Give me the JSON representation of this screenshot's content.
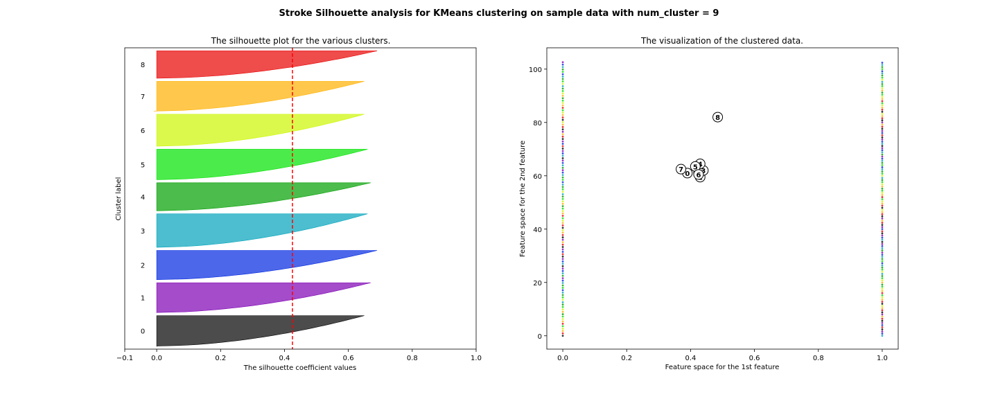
{
  "figure": {
    "suptitle": "Stroke Silhouette analysis for KMeans clustering on sample data with num_cluster = 9"
  },
  "chart_data": [
    {
      "type": "area",
      "title": "The silhouette plot for the various clusters.",
      "xlabel": "The silhouette coefficient values",
      "ylabel": "Cluster label",
      "xlim": [
        -0.1,
        1.0
      ],
      "xticks": [
        -0.1,
        0.0,
        0.2,
        0.4,
        0.6,
        0.8,
        1.0
      ],
      "xtick_labels": [
        "−0.1",
        "0.0",
        "0.2",
        "0.4",
        "0.6",
        "0.8",
        "1.0"
      ],
      "grid": false,
      "average_silhouette_score": 0.425,
      "average_line_color": "#ff0000",
      "clusters": [
        {
          "label": "0",
          "color": "#000000",
          "n": 100,
          "max": 0.65,
          "min": 0.0
        },
        {
          "label": "1",
          "color": "#7e00b4",
          "n": 98,
          "max": 0.67,
          "min": 0.0
        },
        {
          "label": "2",
          "color": "#0026e0",
          "n": 96,
          "max": 0.69,
          "min": 0.0
        },
        {
          "label": "3",
          "color": "#00a3bb",
          "n": 110,
          "max": 0.66,
          "min": 0.0
        },
        {
          "label": "4",
          "color": "#009f00",
          "n": 92,
          "max": 0.67,
          "min": 0.0
        },
        {
          "label": "5",
          "color": "#00e200",
          "n": 100,
          "max": 0.66,
          "min": 0.0
        },
        {
          "label": "6",
          "color": "#ccf600",
          "n": 105,
          "max": 0.65,
          "min": 0.0
        },
        {
          "label": "7",
          "color": "#ffb000",
          "n": 98,
          "max": 0.65,
          "min": -0.01
        },
        {
          "label": "8",
          "color": "#e80000",
          "n": 90,
          "max": 0.69,
          "min": 0.0
        }
      ]
    },
    {
      "type": "scatter",
      "title": "The visualization of the clustered data.",
      "xlabel": "Feature space for the 1st feature",
      "ylabel": "Feature space for the 2nd feature",
      "xlim": [
        -0.05,
        1.05
      ],
      "ylim": [
        -5,
        108
      ],
      "xticks": [
        0.0,
        0.2,
        0.4,
        0.6,
        0.8,
        1.0
      ],
      "xtick_labels": [
        "0.0",
        "0.2",
        "0.4",
        "0.6",
        "0.8",
        "1.0"
      ],
      "yticks": [
        0,
        20,
        40,
        60,
        80,
        100
      ],
      "ytick_labels": [
        "0",
        "20",
        "40",
        "60",
        "80",
        "100"
      ],
      "grid": false,
      "points_x_values": [
        0,
        1
      ],
      "points_y_range": [
        0,
        103
      ],
      "centers": [
        {
          "label": "0",
          "x": 0.39,
          "y": 61
        },
        {
          "label": "1",
          "x": 0.43,
          "y": 59.5
        },
        {
          "label": "2",
          "x": 0.425,
          "y": 61
        },
        {
          "label": "3",
          "x": 0.44,
          "y": 62
        },
        {
          "label": "4",
          "x": 0.43,
          "y": 64.5
        },
        {
          "label": "5",
          "x": 0.415,
          "y": 63.5
        },
        {
          "label": "6",
          "x": 0.425,
          "y": 60.5
        },
        {
          "label": "7",
          "x": 0.37,
          "y": 62.5
        },
        {
          "label": "8",
          "x": 0.485,
          "y": 82
        }
      ]
    }
  ]
}
